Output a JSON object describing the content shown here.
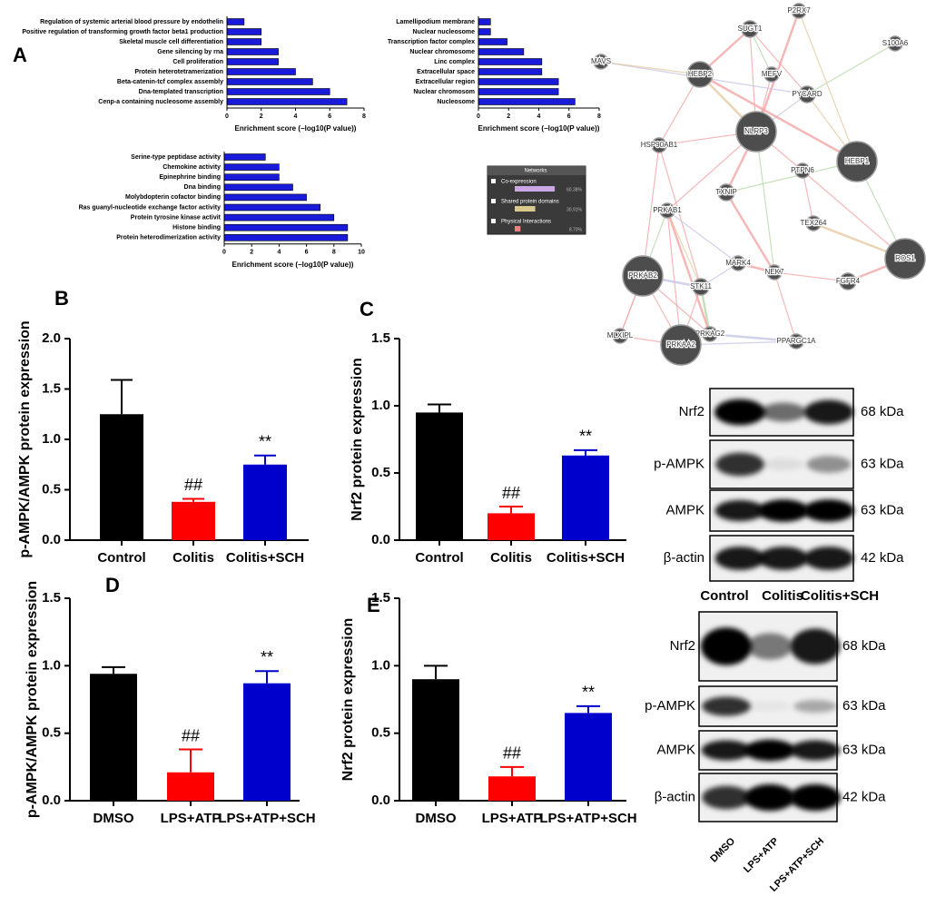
{
  "panel_labels": [
    "A",
    "B",
    "C",
    "D",
    "E"
  ],
  "chart_data": [
    {
      "type": "hbar",
      "xlabel": "Enrichment score (−log10(P value))",
      "color": "#1a1adb",
      "categories": [
        "Regulation of systemic arterial blood pressure by endothelin",
        "Positive regulation of transforming growth factor beta1 production",
        "Skeletal muscle cell differentiation",
        "Gene silencing by rna",
        "Cell proliferation",
        "Protein heterotetramerization",
        "Beta-catenin-tcf complex assembly",
        "Dna-templated transcription",
        "Cenp-a containing nucleosome assembly"
      ],
      "values": [
        1,
        2,
        2,
        3,
        3,
        4,
        5,
        6,
        7
      ],
      "xlim": [
        0,
        8
      ],
      "xticks": [
        0,
        2,
        4,
        6,
        8
      ]
    },
    {
      "type": "hbar",
      "xlabel": "Enrichment score (−log10(P value))",
      "color": "#1a1adb",
      "categories": [
        "Lamellipodium membrane",
        "Nuclear nucleosome",
        "Transcription factor complex",
        "Nuclear chromosome",
        "Linc complex",
        "Extracellular space",
        "Extracellular region",
        "Nuclear chromosom",
        "Nucleosome"
      ],
      "values": [
        0.8,
        0.8,
        1.9,
        3,
        4.2,
        4.2,
        5.3,
        5.3,
        6.4
      ],
      "xlim": [
        0,
        8
      ],
      "xticks": [
        0,
        2,
        4,
        6,
        8
      ]
    },
    {
      "type": "hbar",
      "xlabel": "Enrichment score (−log10(P value))",
      "color": "#1a1adb",
      "categories": [
        "Serine-type peptidase activity",
        "Chemokine activity",
        "Epinephrine binding",
        "Dna binding",
        "Molybdopterin cofactor binding",
        "Ras guanyl-nucleotide exchange factor activity",
        "Protein tyrosine kinase activit",
        "Histone binding",
        "Protein heterodimerization activity"
      ],
      "values": [
        3,
        4,
        4,
        5,
        6,
        7,
        8,
        9,
        9
      ],
      "xlim": [
        0,
        10
      ],
      "xticks": [
        0,
        2,
        4,
        6,
        8,
        10
      ]
    },
    {
      "type": "bar",
      "ylabel": "p-AMPK/AMPK protein expression",
      "categories": [
        "Control",
        "Colitis",
        "Colitis+SCH"
      ],
      "values": [
        1.25,
        0.38,
        0.75
      ],
      "errors": [
        0.34,
        0.03,
        0.09
      ],
      "colors": [
        "#000000",
        "#ff0000",
        "#0000cc"
      ],
      "annotations": [
        null,
        "##",
        "**"
      ],
      "ylim": [
        0,
        2
      ],
      "yticks": [
        {
          "value": 0,
          "label": "0.0"
        },
        0.5,
        {
          "value": 1,
          "label": "1.0"
        },
        1.5,
        {
          "value": 2,
          "label": "2.0"
        }
      ]
    },
    {
      "type": "bar",
      "ylabel": "Nrf2 protein expression",
      "categories": [
        "Control",
        "Colitis",
        "Colitis+SCH"
      ],
      "values": [
        0.95,
        0.2,
        0.63
      ],
      "errors": [
        0.06,
        0.05,
        0.04
      ],
      "colors": [
        "#000000",
        "#ff0000",
        "#0000cc"
      ],
      "annotations": [
        null,
        "##",
        "**"
      ],
      "ylim": [
        0,
        1.5
      ],
      "yticks": [
        {
          "value": 0,
          "label": "0.0"
        },
        0.5,
        {
          "value": 1,
          "label": "1.0"
        },
        1.5
      ]
    },
    {
      "type": "bar",
      "ylabel": "p-AMPK/AMPK protein expression",
      "categories": [
        "DMSO",
        "LPS+ATP",
        "LPS+ATP+SCH"
      ],
      "values": [
        0.94,
        0.21,
        0.87
      ],
      "errors": [
        0.05,
        0.17,
        0.09
      ],
      "colors": [
        "#000000",
        "#ff0000",
        "#0000cc"
      ],
      "annotations": [
        null,
        "##",
        "**"
      ],
      "ylim": [
        0,
        1.5
      ],
      "yticks": [
        {
          "value": 0,
          "label": "0.0"
        },
        0.5,
        {
          "value": 1,
          "label": "1.0"
        },
        1.5
      ]
    },
    {
      "type": "bar",
      "ylabel": "Nrf2 protein expression",
      "categories": [
        "DMSO",
        "LPS+ATP",
        "LPS+ATP+SCH"
      ],
      "values": [
        0.9,
        0.18,
        0.65
      ],
      "errors": [
        0.1,
        0.07,
        0.05
      ],
      "colors": [
        "#000000",
        "#ff0000",
        "#0000cc"
      ],
      "annotations": [
        null,
        "##",
        "**"
      ],
      "ylim": [
        0,
        1.5
      ],
      "yticks": [
        {
          "value": 0,
          "label": "0.0"
        },
        0.5,
        {
          "value": 1,
          "label": "1.0"
        },
        1.5
      ]
    }
  ],
  "network": {
    "nodes": [
      "P2RX7",
      "SUGT1",
      "S100A6",
      "MAVS",
      "HEBP2",
      "MEFV",
      "PYCARD",
      "NLRP3",
      "HSP90AB1",
      "HEBP1",
      "PTPN6",
      "TXNIP",
      "PRKAB1",
      "TEX264",
      "ROS1",
      "MARK4",
      "NEK7",
      "PRKAB2",
      "STK11",
      "FGFR4",
      "MLXIPL",
      "PRKAG2",
      "PRKAA2",
      "PPARGC1A"
    ],
    "legend": {
      "title": "Networks",
      "items": [
        {
          "name": "Co-expression",
          "value": 60.38,
          "value_label": "60.38%",
          "color": "#c9a6e4"
        },
        {
          "name": "Shared protein domains",
          "value": 30.91,
          "value_label": "30.91%",
          "color": "#d9c98c"
        },
        {
          "name": "Physical Interactions",
          "value": 8.7,
          "value_label": "8.70%",
          "color": "#f08080"
        }
      ]
    }
  },
  "blots": [
    {
      "lanes": [
        "Control",
        "Colitis",
        "Colitis+SCH"
      ],
      "rows": [
        {
          "protein": "Nrf2",
          "size": "68 kDa"
        },
        {
          "protein": "p-AMPK",
          "size": "63 kDa"
        },
        {
          "protein": "AMPK",
          "size": "63 kDa"
        },
        {
          "protein": "β-actin",
          "size": "42 kDa"
        }
      ]
    },
    {
      "lanes": [
        "DMSO",
        "LPS+ATP",
        "LPS+ATP+SCH"
      ],
      "rows": [
        {
          "protein": "Nrf2",
          "size": "68 kDa"
        },
        {
          "protein": "p-AMPK",
          "size": "63 kDa"
        },
        {
          "protein": "AMPK",
          "size": "63 kDa"
        },
        {
          "protein": "β-actin",
          "size": "42 kDa"
        }
      ]
    }
  ]
}
